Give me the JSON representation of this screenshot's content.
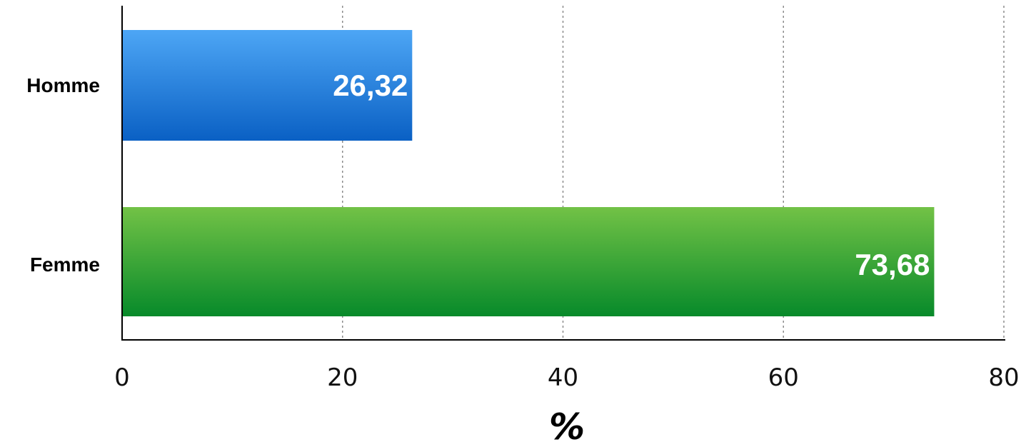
{
  "chart_data": {
    "type": "bar",
    "orientation": "horizontal",
    "categories": [
      "Homme",
      "Femme"
    ],
    "values": [
      26.32,
      73.68
    ],
    "value_labels": [
      "26,32",
      "73,68"
    ],
    "xlabel": "%",
    "xlim": [
      0,
      80
    ],
    "xticks": [
      0,
      20,
      40,
      60,
      80
    ],
    "grid": true,
    "bar_colors": [
      {
        "top": "#4da6f5",
        "bottom": "#0a60c4"
      },
      {
        "top": "#72c246",
        "bottom": "#078a2a"
      }
    ]
  }
}
